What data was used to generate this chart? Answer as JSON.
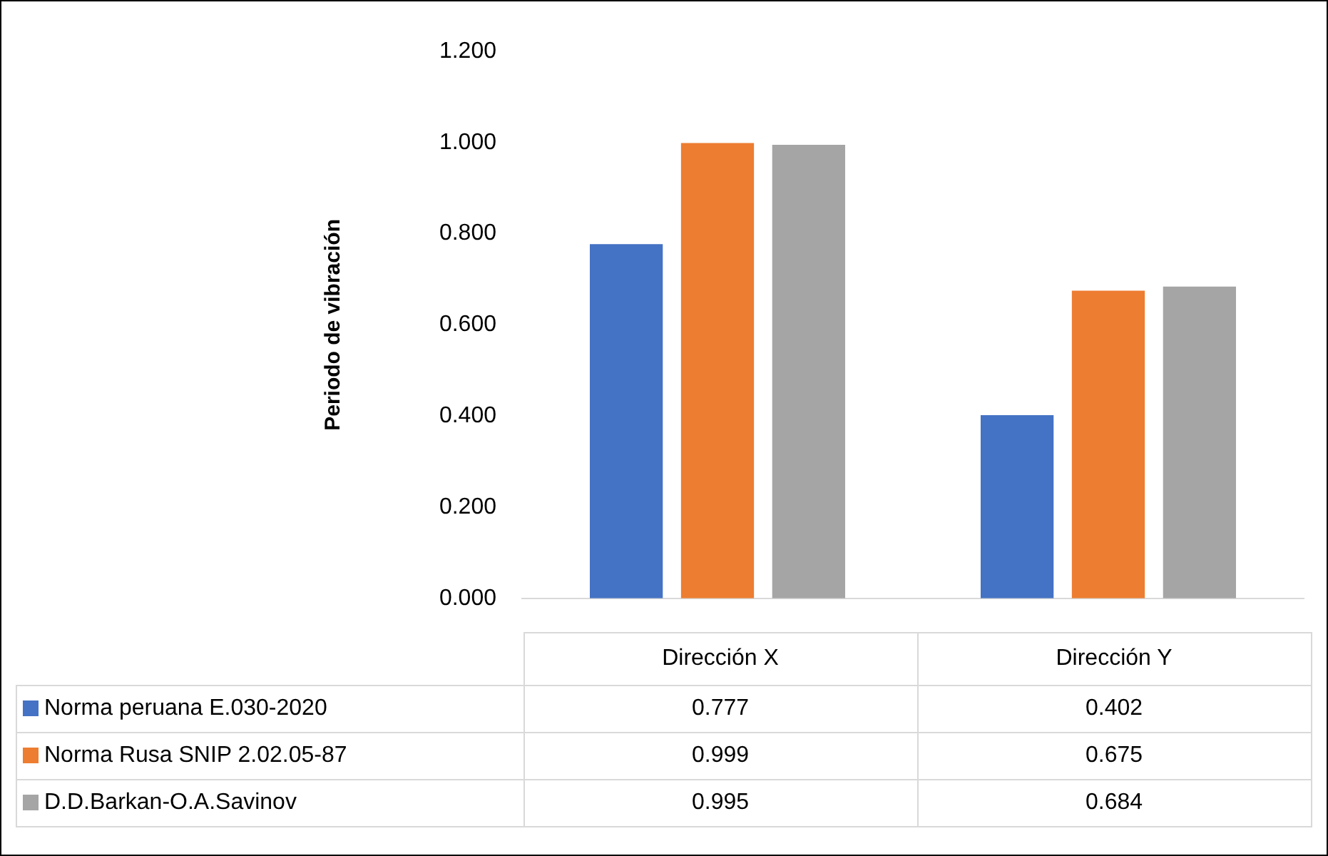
{
  "chart_data": {
    "type": "bar",
    "ylabel": "Periodo de vibración",
    "categories": [
      "Dirección X",
      "Dirección Y"
    ],
    "series": [
      {
        "name": "Norma peruana E.030-2020",
        "color": "#4472c4",
        "values": [
          0.777,
          0.402
        ]
      },
      {
        "name": "Norma Rusa SNIP 2.02.05-87",
        "color": "#ed7d31",
        "values": [
          0.999,
          0.675
        ]
      },
      {
        "name": "D.D.Barkan-O.A.Savinov",
        "color": "#a5a5a5",
        "values": [
          0.995,
          0.684
        ]
      }
    ],
    "ylim": [
      0,
      1.2
    ],
    "yticks": [
      {
        "value": 0,
        "label": "0.000"
      },
      {
        "value": 0.2,
        "label": "0.200"
      },
      {
        "value": 0.4,
        "label": "0.400"
      },
      {
        "value": 0.6,
        "label": "0.600"
      },
      {
        "value": 0.8,
        "label": "0.800"
      },
      {
        "value": 1,
        "label": "1.000"
      },
      {
        "value": 1.2,
        "label": "1.200"
      }
    ],
    "grid": false,
    "legend": "bottom",
    "data_labels": true
  }
}
